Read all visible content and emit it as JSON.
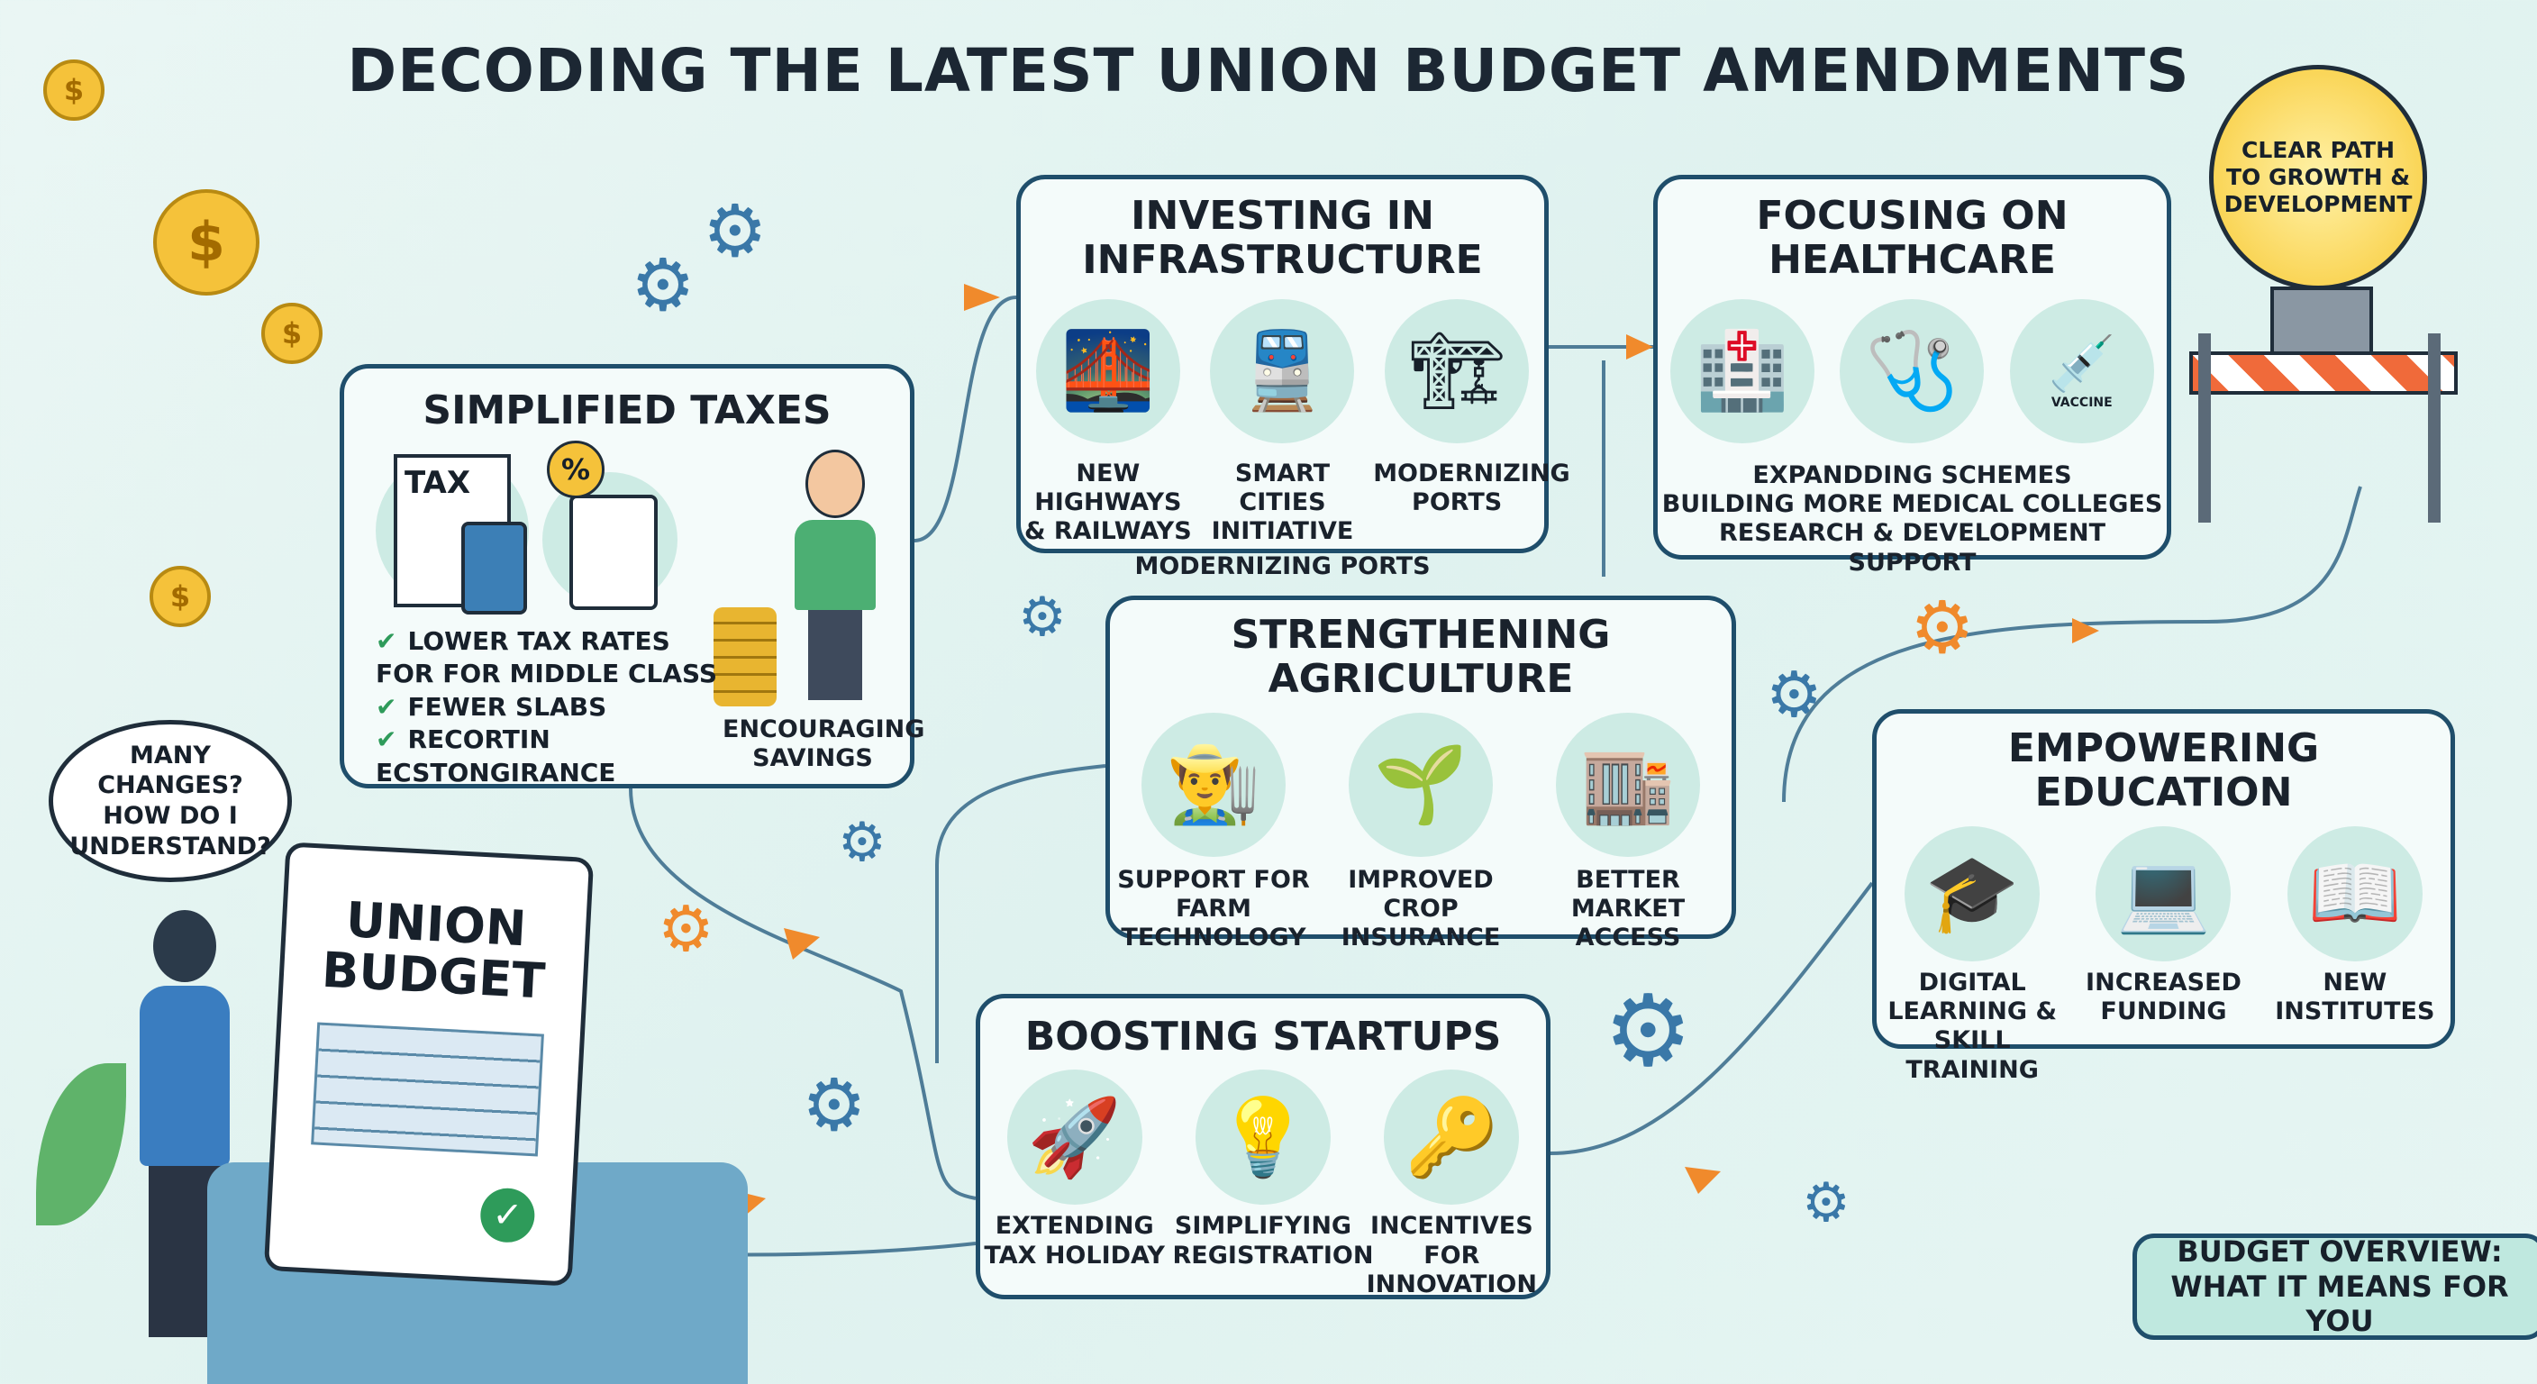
{
  "title": "DECODING THE LATEST UNION BUDGET AMENDMENTS",
  "colors": {
    "border": "#1f4e6b",
    "accent_orange": "#f08a2c",
    "accent_teal": "#cdebe4",
    "coin": "#f5c23a"
  },
  "speech_bubble": "MANY CHANGES? HOW DO I UNDERSTAND?",
  "document": {
    "title": "UNION BUDGET"
  },
  "lightbulb": {
    "text": "CLEAR PATH TO GROWTH & DEVELOPMENT"
  },
  "taxes": {
    "heading": "SIMPLIFIED TAXES",
    "icon_labels": [
      "TAX",
      "%"
    ],
    "items": [
      "LOWER  TAX RATES FOR FOR MIDDLE CLASS",
      "FEWER SLABS",
      "RECORTIN ECSTONGIRANCE"
    ],
    "side_caption": "ENCOURAGING SAVINGS"
  },
  "infrastructure": {
    "heading": "INVESTING IN INFRASTRUCTURE",
    "captions": [
      "NEW HIGHWAYS & RAILWAYS",
      "SMART CITIES INITIATIVE",
      "MODERNIZING PORTS"
    ],
    "extra": "MODERNIZING PORTS"
  },
  "healthcare": {
    "heading": "FOCUSING ON HEALTHCARE",
    "vial_label": "VACCINE",
    "items": [
      "EXPANDDING SCHEMES",
      "BUILDING MORE MEDICAL COLLEGES",
      "RESEARCH & DEVELOPMENT SUPPORT"
    ]
  },
  "agriculture": {
    "heading": "STRENGTHENING AGRICULTURE",
    "captions": [
      "SUPPORT FOR FARM TECHNOLOGY",
      "IMPROVED CROP INSURANCE",
      "BETTER MARKET ACCESS"
    ]
  },
  "startups": {
    "heading": "BOOSTING STARTUPS",
    "captions": [
      "EXTENDING TAX HOLIDAY",
      "SIMPLIFYING REGISTRATION",
      "INCENTIVES FOR INNOVATION"
    ]
  },
  "education": {
    "heading": "EMPOWERING EDUCATION",
    "captions": [
      "DIGITAL LEARNING & SKILL TRAINING",
      "INCREASED FUNDING",
      "NEW INSTITUTES"
    ]
  },
  "overview": "BUDGET OVERVIEW: WHAT IT MEANS FOR YOU",
  "coin_symbol": "$"
}
